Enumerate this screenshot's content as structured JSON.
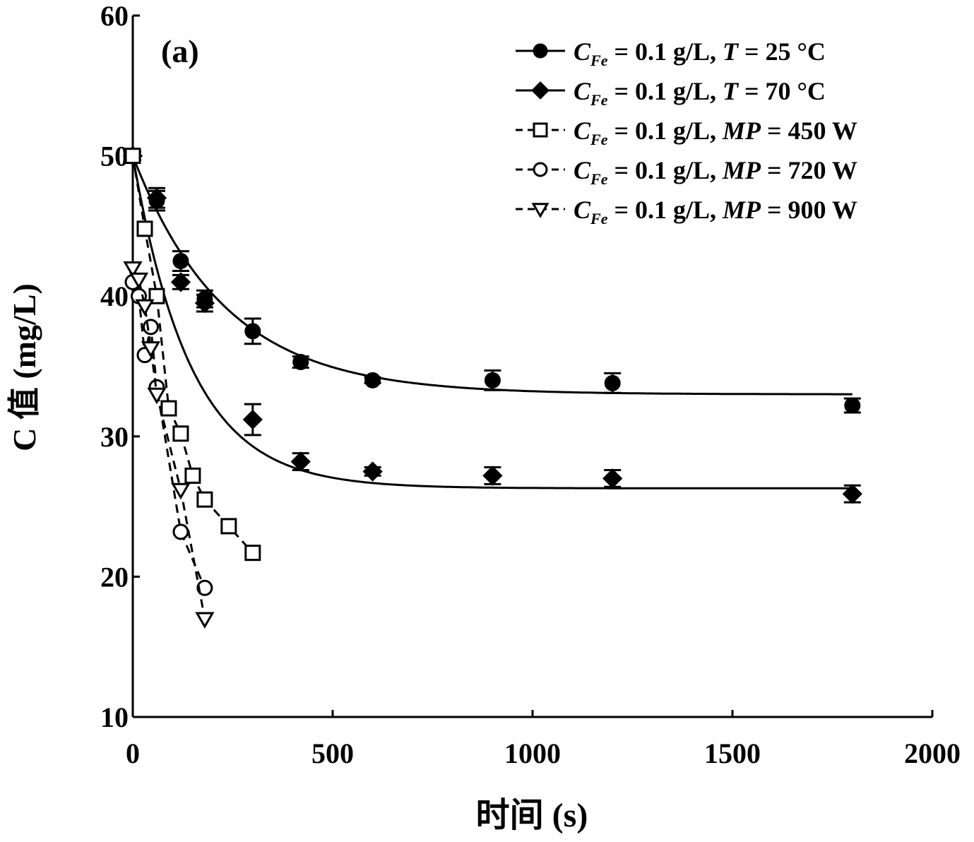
{
  "chart_data": {
    "type": "line",
    "panel_label": "(a)",
    "title": "",
    "xlabel": "时间 (s)",
    "ylabel": "C 值 (mg/L)",
    "xlim": [
      0,
      2000
    ],
    "ylim": [
      10,
      60
    ],
    "x_ticks": [
      0,
      500,
      1000,
      1500,
      2000
    ],
    "y_ticks": [
      10,
      20,
      30,
      40,
      50,
      60
    ],
    "grid": false,
    "legend_position": "top-right",
    "series": [
      {
        "name": "C_Fe = 0.1 g/L, T = 25 °C",
        "legend_parts": [
          [
            "C",
            "i"
          ],
          [
            "Fe",
            "sub"
          ],
          [
            " = 0.1 g/L, ",
            ""
          ],
          [
            "T",
            "i"
          ],
          [
            " = 25 °C",
            ""
          ]
        ],
        "marker": "circle",
        "filled": true,
        "line": "solid",
        "x": [
          0,
          60,
          120,
          180,
          300,
          420,
          600,
          900,
          1200,
          1800
        ],
        "y": [
          50.0,
          46.8,
          42.5,
          39.8,
          37.5,
          35.3,
          34.0,
          34.0,
          33.8,
          32.2
        ],
        "err": [
          0.3,
          0.7,
          0.7,
          0.6,
          0.9,
          0.4,
          0.2,
          0.7,
          0.7,
          0.5
        ],
        "fit": {
          "model": "exp",
          "c": 33.0,
          "a": 17.0,
          "tau": 230
        }
      },
      {
        "name": "C_Fe = 0.1 g/L, T = 70 °C",
        "legend_parts": [
          [
            "C",
            "i"
          ],
          [
            "Fe",
            "sub"
          ],
          [
            " = 0.1 g/L, ",
            ""
          ],
          [
            "T",
            "i"
          ],
          [
            " = 70 °C",
            ""
          ]
        ],
        "marker": "diamond",
        "filled": true,
        "line": "solid",
        "x": [
          0,
          60,
          120,
          180,
          300,
          420,
          600,
          900,
          1200,
          1800
        ],
        "y": [
          50.0,
          47.0,
          41.0,
          39.5,
          31.2,
          28.2,
          27.5,
          27.2,
          27.0,
          25.9
        ],
        "err": [
          0.3,
          0.7,
          0.5,
          0.6,
          1.1,
          0.6,
          0.3,
          0.6,
          0.6,
          0.6
        ],
        "fit": {
          "model": "exp",
          "c": 26.3,
          "a": 23.7,
          "tau": 145
        }
      },
      {
        "name": "C_Fe = 0.1 g/L, MP = 450 W",
        "legend_parts": [
          [
            "C",
            "i"
          ],
          [
            "Fe",
            "sub"
          ],
          [
            " = 0.1 g/L, ",
            ""
          ],
          [
            "MP",
            "i"
          ],
          [
            " = 450 W",
            ""
          ]
        ],
        "marker": "square",
        "filled": false,
        "line": "dashed",
        "x": [
          0,
          30,
          60,
          90,
          120,
          150,
          180,
          240,
          300
        ],
        "y": [
          50.0,
          44.8,
          40.0,
          32.0,
          30.2,
          27.2,
          25.5,
          23.6,
          21.7
        ],
        "err": [
          0,
          0,
          0,
          0,
          0,
          0,
          0,
          0,
          0
        ]
      },
      {
        "name": "C_Fe = 0.1 g/L, MP = 720 W",
        "legend_parts": [
          [
            "C",
            "i"
          ],
          [
            "Fe",
            "sub"
          ],
          [
            " = 0.1 g/L, ",
            ""
          ],
          [
            "MP",
            "i"
          ],
          [
            " = 720 W",
            ""
          ]
        ],
        "marker": "circle",
        "filled": false,
        "line": "dashed",
        "x": [
          0,
          15,
          30,
          45,
          60,
          120,
          180
        ],
        "y": [
          41.0,
          40.0,
          35.8,
          37.8,
          33.5,
          23.2,
          19.2
        ],
        "err": [
          0,
          0,
          0,
          0,
          0,
          0,
          0
        ]
      },
      {
        "name": "C_Fe = 0.1 g/L, MP = 900 W",
        "legend_parts": [
          [
            "C",
            "i"
          ],
          [
            "Fe",
            "sub"
          ],
          [
            " = 0.1 g/L, ",
            ""
          ],
          [
            "MP",
            "i"
          ],
          [
            " = 900 W",
            ""
          ]
        ],
        "marker": "triangle-down",
        "filled": false,
        "line": "dashed",
        "x": [
          0,
          15,
          30,
          45,
          60,
          120,
          180
        ],
        "y": [
          42.0,
          41.2,
          39.3,
          36.3,
          33.0,
          26.2,
          17.0
        ],
        "err": [
          0,
          0,
          0,
          0,
          0,
          0,
          0
        ]
      }
    ]
  }
}
